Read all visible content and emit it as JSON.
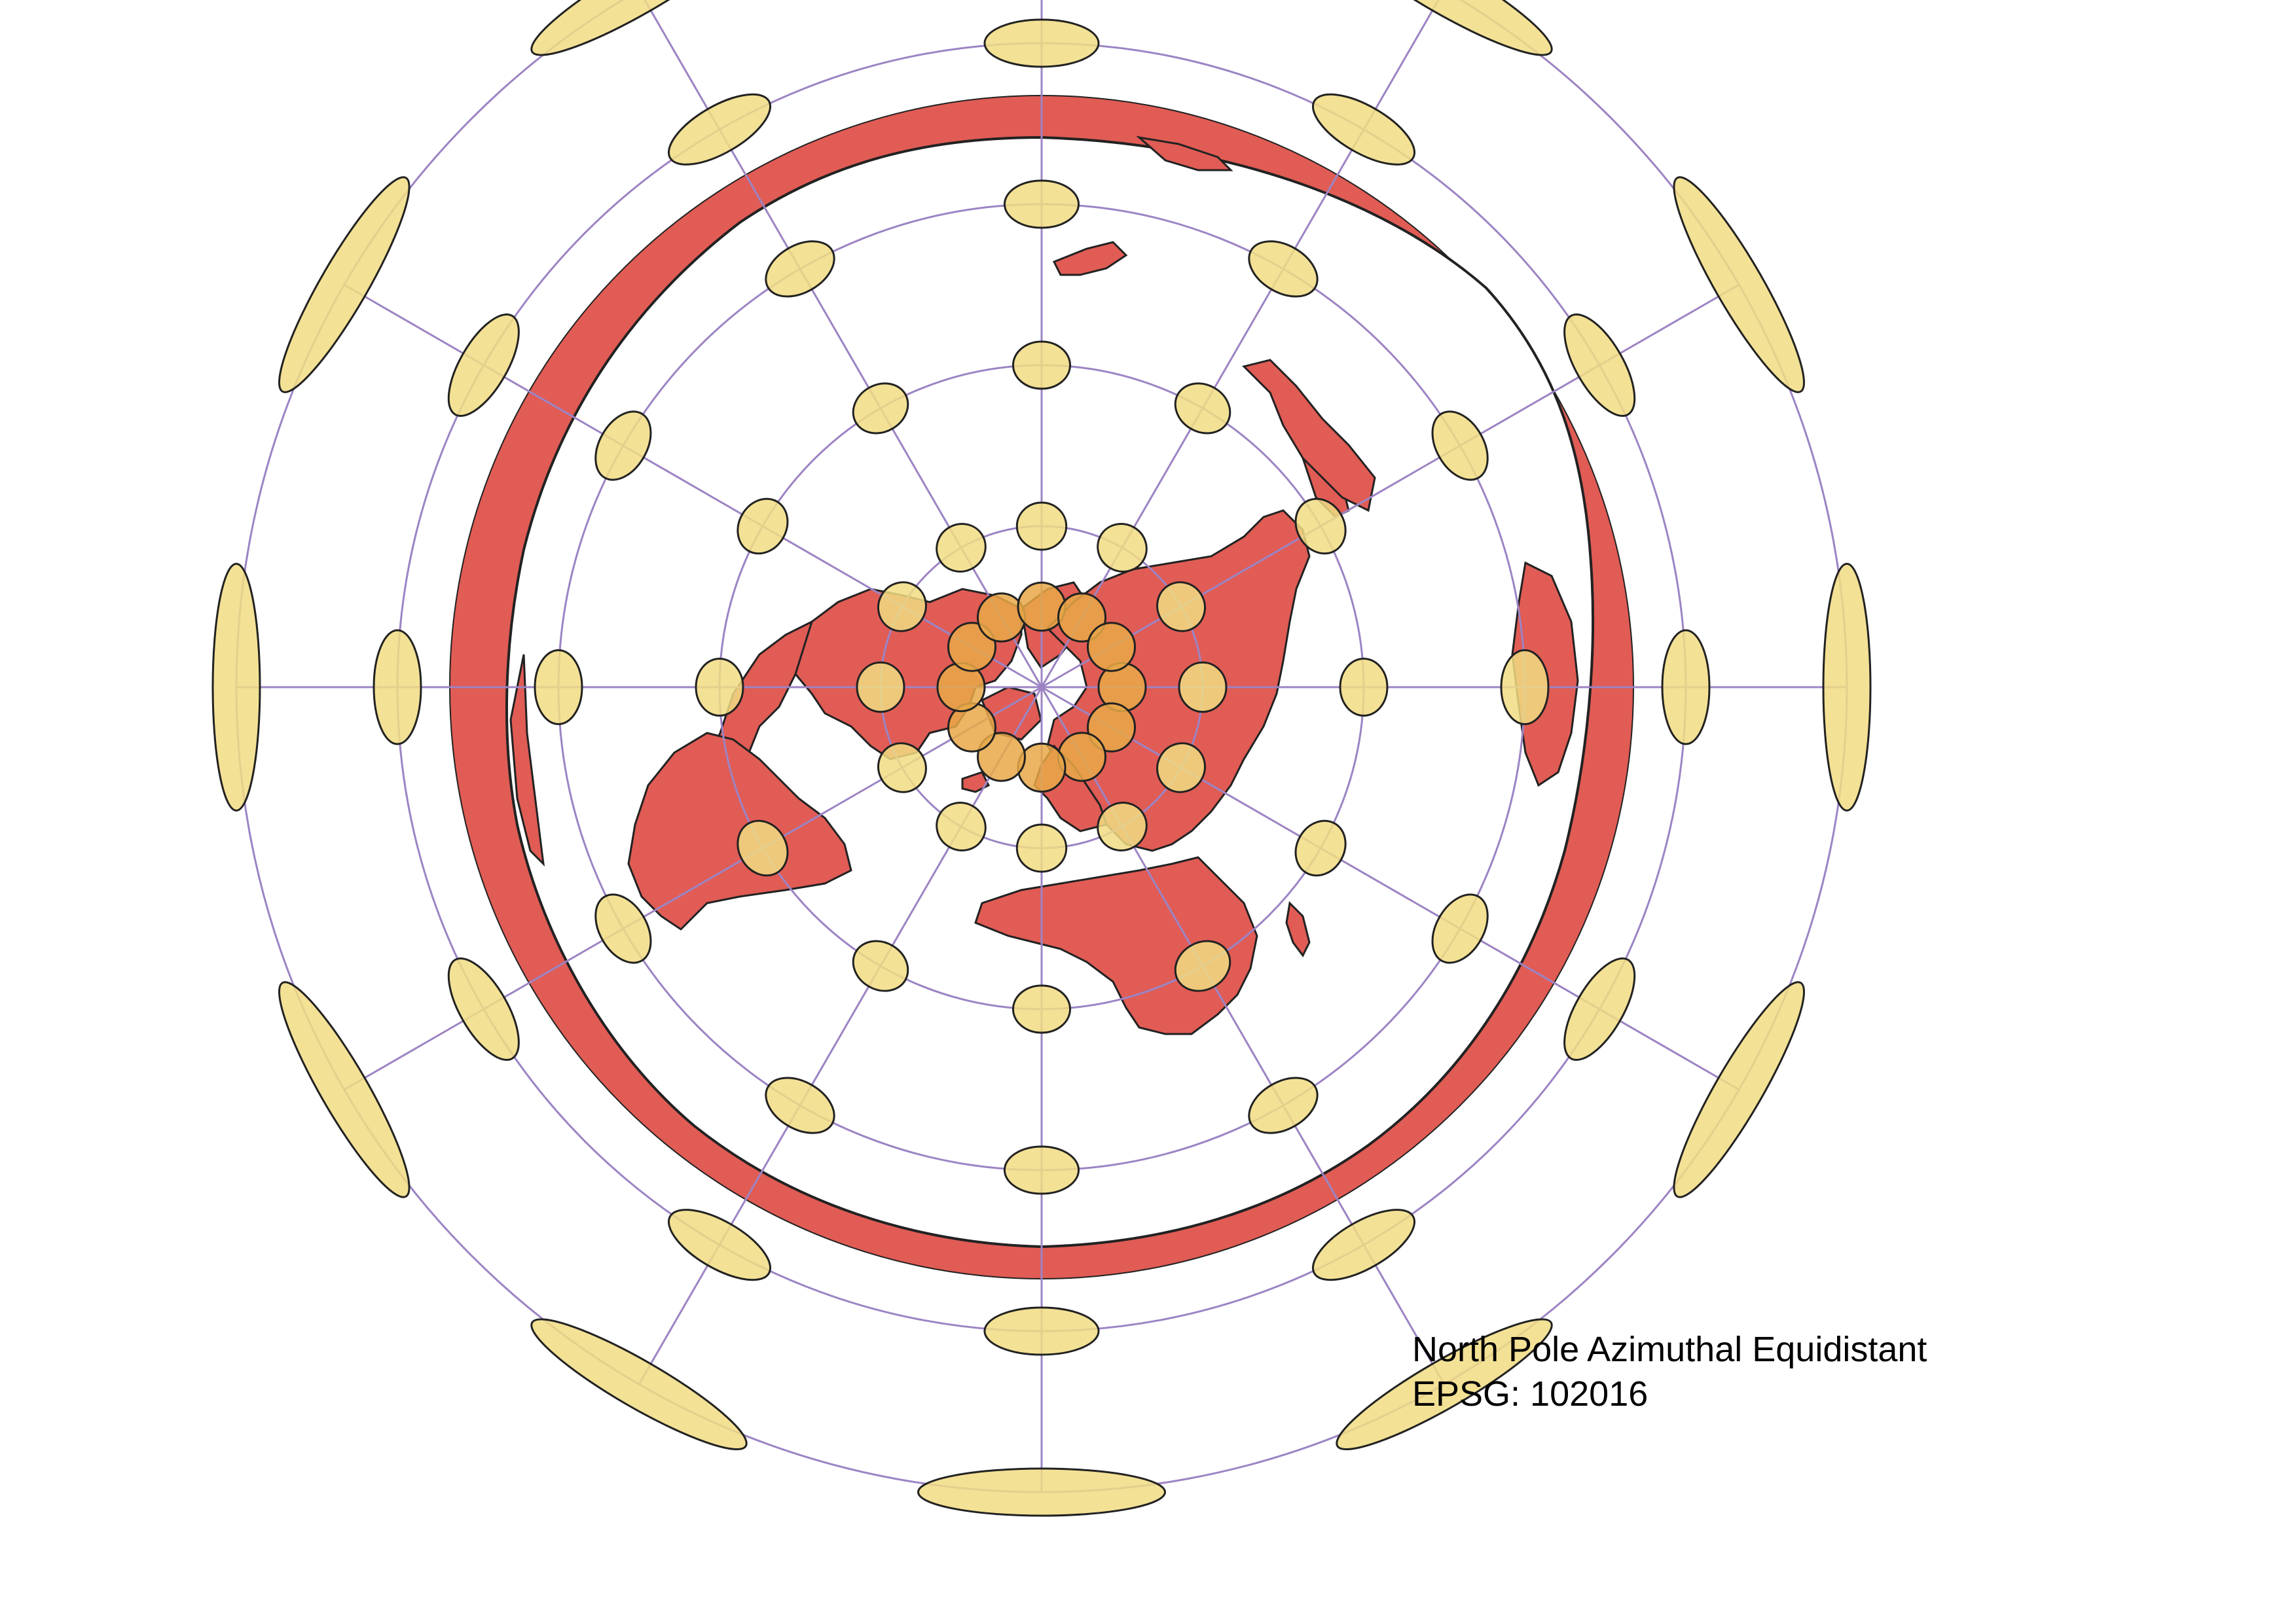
{
  "map": {
    "projection_name": "North Pole Azimuthal Equidistant",
    "epsg_label": "EPSG: 102016",
    "layers": [
      "world-countries",
      "graticule",
      "tissot-indicatrix"
    ],
    "colors": {
      "land": "#E05C55",
      "outline": "#222222",
      "graticule": "#9C84C4",
      "tissot_fill": "#F1DC82",
      "tissot_overlap": "#E8A848",
      "background": "#FFFFFF"
    },
    "graticule": {
      "meridian_step_deg": 30,
      "latitude_rings_deg": [
        60,
        30,
        0,
        -30,
        -60
      ]
    }
  }
}
